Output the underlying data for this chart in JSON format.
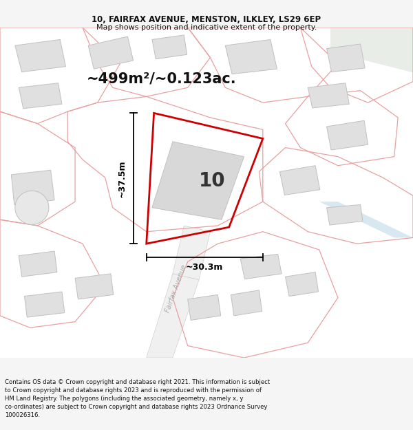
{
  "title_line1": "10, FAIRFAX AVENUE, MENSTON, ILKLEY, LS29 6EP",
  "title_line2": "Map shows position and indicative extent of the property.",
  "area_text": "~499m²/~0.123ac.",
  "label_number": "10",
  "dim_width": "~30.3m",
  "dim_height": "~37.5m",
  "road_label": "Fairfax Avenue",
  "footer_lines": [
    "Contains OS data © Crown copyright and database right 2021. This information is subject",
    "to Crown copyright and database rights 2023 and is reproduced with the permission of",
    "HM Land Registry. The polygons (including the associated geometry, namely x, y",
    "co-ordinates) are subject to Crown copyright and database rights 2023 Ordnance Survey",
    "100026316."
  ],
  "bg_color": "#f5f5f5",
  "map_bg": "#ffffff",
  "polygon_color": "#cc0000",
  "building_fill": "#e0e0e0",
  "building_edge": "#c0c0c0",
  "outline_color": "#e8a0a0",
  "road_color": "#f8f8f8",
  "road_edge": "#d8d8d8",
  "green_fill": "#e8f0e8"
}
